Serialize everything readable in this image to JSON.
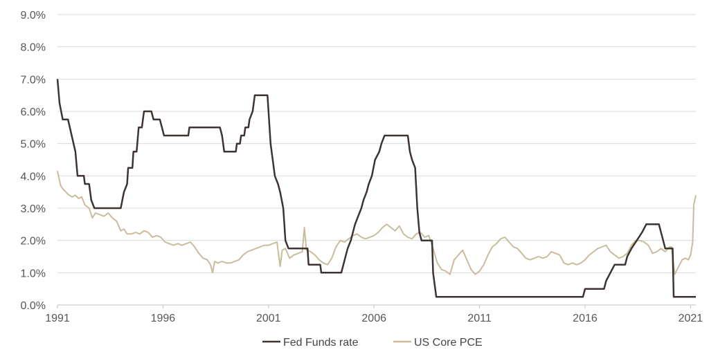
{
  "chart_data": {
    "type": "line",
    "title": "",
    "xlabel": "",
    "ylabel": "",
    "ylim": [
      0,
      9
    ],
    "xlim": [
      1991,
      2021.25
    ],
    "y_ticks": [
      {
        "value": 0,
        "label": "0.0%"
      },
      {
        "value": 1,
        "label": "1.0%"
      },
      {
        "value": 2,
        "label": "2.0%"
      },
      {
        "value": 3,
        "label": "3.0%"
      },
      {
        "value": 4,
        "label": "4.0%"
      },
      {
        "value": 5,
        "label": "5.0%"
      },
      {
        "value": 6,
        "label": "6.0%"
      },
      {
        "value": 7,
        "label": "7.0%"
      },
      {
        "value": 8,
        "label": "8.0%"
      },
      {
        "value": 9,
        "label": "9.0%"
      }
    ],
    "x_ticks": [
      {
        "value": 1991,
        "label": "1991"
      },
      {
        "value": 1996,
        "label": "1996"
      },
      {
        "value": 2001,
        "label": "2001"
      },
      {
        "value": 2006,
        "label": "2006"
      },
      {
        "value": 2011,
        "label": "2011"
      },
      {
        "value": 2016,
        "label": "2016"
      },
      {
        "value": 2021,
        "label": "2021"
      }
    ],
    "grid": "horizontal",
    "legend_position": "bottom",
    "series": [
      {
        "name": "Fed Funds rate",
        "color": "#3d3330",
        "points": [
          [
            1991.0,
            7.0
          ],
          [
            1991.1,
            6.25
          ],
          [
            1991.25,
            5.75
          ],
          [
            1991.5,
            5.75
          ],
          [
            1991.85,
            4.75
          ],
          [
            1991.95,
            4.0
          ],
          [
            1992.25,
            4.0
          ],
          [
            1992.3,
            3.75
          ],
          [
            1992.5,
            3.75
          ],
          [
            1992.6,
            3.25
          ],
          [
            1992.75,
            3.0
          ],
          [
            1993.0,
            3.0
          ],
          [
            1994.0,
            3.0
          ],
          [
            1994.15,
            3.5
          ],
          [
            1994.3,
            3.75
          ],
          [
            1994.35,
            4.25
          ],
          [
            1994.55,
            4.25
          ],
          [
            1994.6,
            4.75
          ],
          [
            1994.75,
            4.75
          ],
          [
            1994.85,
            5.5
          ],
          [
            1995.0,
            5.5
          ],
          [
            1995.1,
            6.0
          ],
          [
            1995.45,
            6.0
          ],
          [
            1995.55,
            5.75
          ],
          [
            1995.85,
            5.75
          ],
          [
            1995.95,
            5.5
          ],
          [
            1996.05,
            5.25
          ],
          [
            1997.2,
            5.25
          ],
          [
            1997.25,
            5.5
          ],
          [
            1998.7,
            5.5
          ],
          [
            1998.8,
            5.25
          ],
          [
            1998.85,
            5.0
          ],
          [
            1998.9,
            4.75
          ],
          [
            1999.45,
            4.75
          ],
          [
            1999.5,
            5.0
          ],
          [
            1999.65,
            5.0
          ],
          [
            1999.7,
            5.25
          ],
          [
            1999.85,
            5.25
          ],
          [
            1999.9,
            5.5
          ],
          [
            2000.05,
            5.5
          ],
          [
            2000.1,
            5.75
          ],
          [
            2000.25,
            6.0
          ],
          [
            2000.35,
            6.5
          ],
          [
            2000.95,
            6.5
          ],
          [
            2001.05,
            5.5
          ],
          [
            2001.1,
            5.0
          ],
          [
            2001.2,
            4.5
          ],
          [
            2001.3,
            4.0
          ],
          [
            2001.45,
            3.75
          ],
          [
            2001.55,
            3.5
          ],
          [
            2001.7,
            3.0
          ],
          [
            2001.75,
            2.5
          ],
          [
            2001.8,
            2.0
          ],
          [
            2001.95,
            1.75
          ],
          [
            2002.85,
            1.75
          ],
          [
            2002.9,
            1.25
          ],
          [
            2003.45,
            1.25
          ],
          [
            2003.5,
            1.0
          ],
          [
            2004.45,
            1.0
          ],
          [
            2004.55,
            1.25
          ],
          [
            2004.65,
            1.5
          ],
          [
            2004.75,
            1.75
          ],
          [
            2004.9,
            2.0
          ],
          [
            2005.0,
            2.25
          ],
          [
            2005.1,
            2.5
          ],
          [
            2005.25,
            2.75
          ],
          [
            2005.4,
            3.0
          ],
          [
            2005.5,
            3.25
          ],
          [
            2005.65,
            3.5
          ],
          [
            2005.75,
            3.75
          ],
          [
            2005.9,
            4.0
          ],
          [
            2006.05,
            4.5
          ],
          [
            2006.25,
            4.75
          ],
          [
            2006.35,
            5.0
          ],
          [
            2006.5,
            5.25
          ],
          [
            2007.6,
            5.25
          ],
          [
            2007.7,
            4.75
          ],
          [
            2007.8,
            4.5
          ],
          [
            2007.95,
            4.25
          ],
          [
            2008.05,
            3.0
          ],
          [
            2008.15,
            2.25
          ],
          [
            2008.25,
            2.0
          ],
          [
            2008.75,
            2.0
          ],
          [
            2008.8,
            1.0
          ],
          [
            2008.95,
            0.25
          ],
          [
            2015.9,
            0.25
          ],
          [
            2016.0,
            0.5
          ],
          [
            2016.9,
            0.5
          ],
          [
            2017.0,
            0.75
          ],
          [
            2017.2,
            1.0
          ],
          [
            2017.4,
            1.25
          ],
          [
            2017.9,
            1.25
          ],
          [
            2018.0,
            1.5
          ],
          [
            2018.2,
            1.75
          ],
          [
            2018.45,
            2.0
          ],
          [
            2018.7,
            2.25
          ],
          [
            2018.9,
            2.5
          ],
          [
            2019.5,
            2.5
          ],
          [
            2019.6,
            2.25
          ],
          [
            2019.7,
            2.0
          ],
          [
            2019.8,
            1.75
          ],
          [
            2020.15,
            1.75
          ],
          [
            2020.2,
            0.25
          ],
          [
            2021.25,
            0.25
          ]
        ]
      },
      {
        "name": "US Core PCE",
        "color": "#c9bb9c",
        "points": [
          [
            1991.0,
            4.15
          ],
          [
            1991.05,
            4.0
          ],
          [
            1991.15,
            3.7
          ],
          [
            1991.25,
            3.6
          ],
          [
            1991.4,
            3.5
          ],
          [
            1991.55,
            3.4
          ],
          [
            1991.7,
            3.35
          ],
          [
            1991.85,
            3.4
          ],
          [
            1992.0,
            3.3
          ],
          [
            1992.15,
            3.35
          ],
          [
            1992.3,
            3.1
          ],
          [
            1992.5,
            3.0
          ],
          [
            1992.65,
            2.7
          ],
          [
            1992.8,
            2.85
          ],
          [
            1993.0,
            2.8
          ],
          [
            1993.2,
            2.75
          ],
          [
            1993.4,
            2.85
          ],
          [
            1993.6,
            2.7
          ],
          [
            1993.8,
            2.6
          ],
          [
            1994.0,
            2.3
          ],
          [
            1994.15,
            2.35
          ],
          [
            1994.3,
            2.2
          ],
          [
            1994.5,
            2.2
          ],
          [
            1994.7,
            2.25
          ],
          [
            1994.9,
            2.2
          ],
          [
            1995.1,
            2.3
          ],
          [
            1995.3,
            2.25
          ],
          [
            1995.5,
            2.1
          ],
          [
            1995.7,
            2.15
          ],
          [
            1995.9,
            2.1
          ],
          [
            1996.1,
            1.95
          ],
          [
            1996.3,
            1.9
          ],
          [
            1996.5,
            1.85
          ],
          [
            1996.7,
            1.9
          ],
          [
            1996.9,
            1.85
          ],
          [
            1997.1,
            1.9
          ],
          [
            1997.3,
            1.95
          ],
          [
            1997.5,
            1.8
          ],
          [
            1997.7,
            1.6
          ],
          [
            1997.9,
            1.45
          ],
          [
            1998.1,
            1.4
          ],
          [
            1998.25,
            1.25
          ],
          [
            1998.35,
            1.0
          ],
          [
            1998.45,
            1.35
          ],
          [
            1998.6,
            1.3
          ],
          [
            1998.8,
            1.35
          ],
          [
            1999.0,
            1.3
          ],
          [
            1999.2,
            1.3
          ],
          [
            1999.4,
            1.35
          ],
          [
            1999.6,
            1.4
          ],
          [
            1999.8,
            1.55
          ],
          [
            2000.0,
            1.65
          ],
          [
            2000.2,
            1.7
          ],
          [
            2000.4,
            1.75
          ],
          [
            2000.6,
            1.8
          ],
          [
            2000.8,
            1.85
          ],
          [
            2001.0,
            1.85
          ],
          [
            2001.2,
            1.9
          ],
          [
            2001.4,
            1.95
          ],
          [
            2001.55,
            1.2
          ],
          [
            2001.65,
            1.7
          ],
          [
            2001.8,
            1.75
          ],
          [
            2002.0,
            1.45
          ],
          [
            2002.2,
            1.55
          ],
          [
            2002.4,
            1.6
          ],
          [
            2002.6,
            1.65
          ],
          [
            2002.7,
            2.4
          ],
          [
            2002.8,
            1.7
          ],
          [
            2003.0,
            1.65
          ],
          [
            2003.2,
            1.55
          ],
          [
            2003.4,
            1.4
          ],
          [
            2003.6,
            1.3
          ],
          [
            2003.8,
            1.25
          ],
          [
            2004.0,
            1.45
          ],
          [
            2004.2,
            1.8
          ],
          [
            2004.4,
            2.0
          ],
          [
            2004.6,
            1.95
          ],
          [
            2004.8,
            2.05
          ],
          [
            2005.0,
            2.15
          ],
          [
            2005.2,
            2.2
          ],
          [
            2005.4,
            2.1
          ],
          [
            2005.6,
            2.05
          ],
          [
            2005.8,
            2.1
          ],
          [
            2006.0,
            2.15
          ],
          [
            2006.2,
            2.25
          ],
          [
            2006.4,
            2.4
          ],
          [
            2006.6,
            2.5
          ],
          [
            2006.8,
            2.4
          ],
          [
            2007.0,
            2.3
          ],
          [
            2007.2,
            2.45
          ],
          [
            2007.4,
            2.2
          ],
          [
            2007.6,
            2.1
          ],
          [
            2007.8,
            2.05
          ],
          [
            2008.0,
            2.2
          ],
          [
            2008.2,
            2.25
          ],
          [
            2008.4,
            2.1
          ],
          [
            2008.6,
            2.15
          ],
          [
            2008.8,
            1.75
          ],
          [
            2009.0,
            1.3
          ],
          [
            2009.2,
            1.1
          ],
          [
            2009.4,
            1.05
          ],
          [
            2009.6,
            0.95
          ],
          [
            2009.8,
            1.4
          ],
          [
            2010.0,
            1.55
          ],
          [
            2010.2,
            1.7
          ],
          [
            2010.4,
            1.4
          ],
          [
            2010.6,
            1.1
          ],
          [
            2010.8,
            0.95
          ],
          [
            2011.0,
            1.05
          ],
          [
            2011.2,
            1.25
          ],
          [
            2011.4,
            1.55
          ],
          [
            2011.6,
            1.8
          ],
          [
            2011.8,
            1.9
          ],
          [
            2012.0,
            2.05
          ],
          [
            2012.2,
            2.1
          ],
          [
            2012.4,
            1.95
          ],
          [
            2012.6,
            1.8
          ],
          [
            2012.8,
            1.75
          ],
          [
            2013.0,
            1.6
          ],
          [
            2013.2,
            1.45
          ],
          [
            2013.4,
            1.4
          ],
          [
            2013.6,
            1.45
          ],
          [
            2013.8,
            1.5
          ],
          [
            2014.0,
            1.45
          ],
          [
            2014.2,
            1.5
          ],
          [
            2014.4,
            1.65
          ],
          [
            2014.6,
            1.6
          ],
          [
            2014.8,
            1.55
          ],
          [
            2015.0,
            1.3
          ],
          [
            2015.2,
            1.25
          ],
          [
            2015.4,
            1.3
          ],
          [
            2015.6,
            1.25
          ],
          [
            2015.8,
            1.3
          ],
          [
            2016.0,
            1.4
          ],
          [
            2016.2,
            1.55
          ],
          [
            2016.4,
            1.65
          ],
          [
            2016.6,
            1.75
          ],
          [
            2016.8,
            1.8
          ],
          [
            2017.0,
            1.85
          ],
          [
            2017.2,
            1.65
          ],
          [
            2017.4,
            1.55
          ],
          [
            2017.6,
            1.45
          ],
          [
            2017.8,
            1.5
          ],
          [
            2018.0,
            1.6
          ],
          [
            2018.2,
            1.85
          ],
          [
            2018.4,
            2.0
          ],
          [
            2018.6,
            2.0
          ],
          [
            2018.8,
            1.95
          ],
          [
            2019.0,
            1.85
          ],
          [
            2019.2,
            1.6
          ],
          [
            2019.4,
            1.65
          ],
          [
            2019.6,
            1.75
          ],
          [
            2019.8,
            1.65
          ],
          [
            2020.0,
            1.8
          ],
          [
            2020.1,
            1.8
          ],
          [
            2020.25,
            0.95
          ],
          [
            2020.4,
            1.15
          ],
          [
            2020.6,
            1.4
          ],
          [
            2020.75,
            1.45
          ],
          [
            2020.9,
            1.4
          ],
          [
            2021.0,
            1.55
          ],
          [
            2021.1,
            1.95
          ],
          [
            2021.15,
            3.1
          ],
          [
            2021.25,
            3.4
          ]
        ]
      }
    ]
  }
}
